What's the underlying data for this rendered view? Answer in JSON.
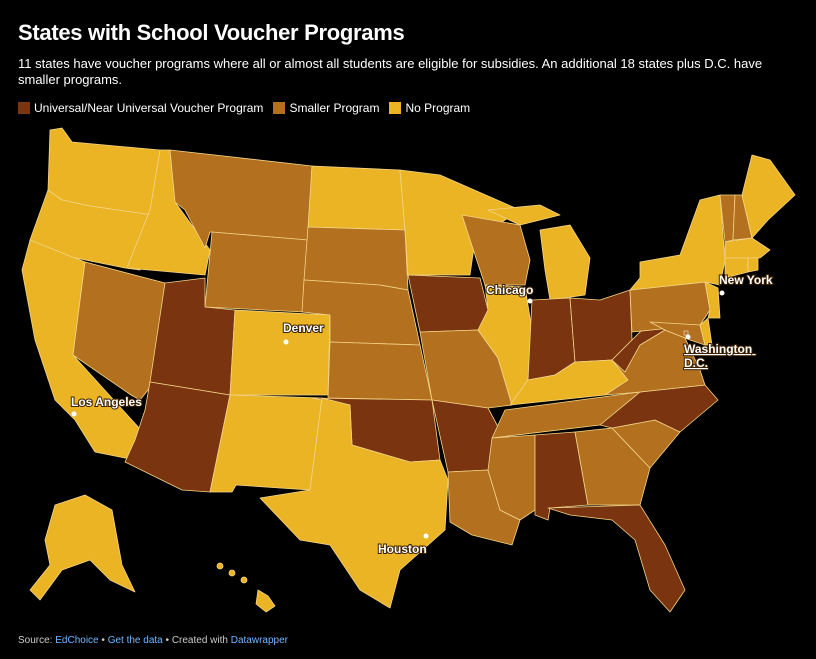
{
  "title": "States with School Voucher Programs",
  "subtitle": "11 states have voucher programs where all or almost all students are eligible for subsidies. An additional 18 states plus D.C. have smaller programs.",
  "legend": [
    {
      "label": "Universal/Near Universal Voucher Program",
      "color": "#7a3410"
    },
    {
      "label": "Smaller Program",
      "color": "#b3701e"
    },
    {
      "label": "No Program",
      "color": "#eab424"
    }
  ],
  "colors": {
    "universal": "#7a3410",
    "smaller": "#b3701e",
    "none": "#eab424",
    "border": "#f4d488"
  },
  "states": {
    "Universal/Near Universal Voucher Program": [
      "Arizona",
      "Utah",
      "Iowa",
      "Oklahoma",
      "Arkansas",
      "Indiana",
      "Ohio",
      "West Virginia",
      "North Carolina",
      "Alabama",
      "Florida"
    ],
    "Smaller Program": [
      "Nevada",
      "Montana",
      "Wyoming",
      "South Dakota",
      "Nebraska",
      "Kansas",
      "Missouri",
      "Wisconsin",
      "Louisiana",
      "Mississippi",
      "Tennessee",
      "Georgia",
      "South Carolina",
      "Virginia",
      "Maryland",
      "Pennsylvania",
      "New Hampshire",
      "Vermont",
      "District of Columbia"
    ],
    "No Program": [
      "Washington",
      "Oregon",
      "California",
      "Idaho",
      "Colorado",
      "New Mexico",
      "Texas",
      "North Dakota",
      "Minnesota",
      "Illinois",
      "Michigan",
      "Kentucky",
      "New York",
      "New Jersey",
      "Delaware",
      "Connecticut",
      "Rhode Island",
      "Massachusetts",
      "Maine",
      "Alaska",
      "Hawaii"
    ]
  },
  "cities": [
    {
      "name": "Chicago"
    },
    {
      "name": "New York"
    },
    {
      "name": "Denver"
    },
    {
      "name": "Washington D.C."
    },
    {
      "name": "Los Angeles"
    },
    {
      "name": "Houston"
    }
  ],
  "footer": {
    "source_label": "Source:",
    "source_name": "EdChoice",
    "sep1": "•",
    "get_data": "Get the data",
    "sep2": "•",
    "created_with": "Created with",
    "tool": "Datawrapper"
  }
}
